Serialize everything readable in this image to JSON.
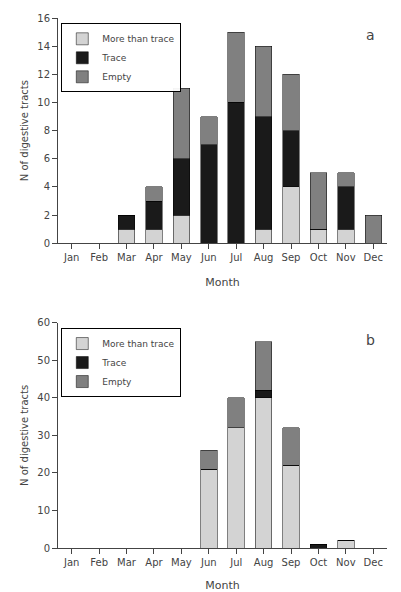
{
  "chart_data": [
    {
      "type": "bar",
      "stacked": true,
      "categories": [
        "Jan",
        "Feb",
        "Mar",
        "Apr",
        "May",
        "Jun",
        "Jul",
        "Aug",
        "Sep",
        "Oct",
        "Nov",
        "Dec"
      ],
      "series": [
        {
          "name": "More than trace",
          "color": "#d3d3d3",
          "values": [
            0,
            0,
            1,
            1,
            2,
            0,
            0,
            1,
            4,
            1,
            1,
            0
          ]
        },
        {
          "name": "Trace",
          "color": "#1a1a1a",
          "values": [
            0,
            0,
            1,
            2,
            4,
            7,
            10,
            8,
            4,
            0,
            3,
            0
          ]
        },
        {
          "name": "Empty",
          "color": "#808080",
          "values": [
            0,
            0,
            0,
            1,
            5,
            2,
            5,
            5,
            4,
            4,
            1,
            2
          ]
        }
      ],
      "ylim": [
        0,
        16
      ],
      "yticks": [
        0,
        2,
        4,
        6,
        8,
        10,
        12,
        14,
        16
      ],
      "ylabel": "N of digestive tracts",
      "xlabel": "Month",
      "annotations": [
        "a"
      ],
      "legend": "upper left",
      "grid": false
    },
    {
      "type": "bar",
      "stacked": true,
      "categories": [
        "Jan",
        "Feb",
        "Mar",
        "Apr",
        "May",
        "Jun",
        "Jul",
        "Aug",
        "Sep",
        "Oct",
        "Nov",
        "Dec"
      ],
      "series": [
        {
          "name": "More than trace",
          "color": "#d3d3d3",
          "values": [
            0,
            0,
            0,
            0,
            0,
            21,
            32,
            40,
            22,
            0,
            2,
            0
          ]
        },
        {
          "name": "Trace",
          "color": "#1a1a1a",
          "values": [
            0,
            0,
            0,
            0,
            0,
            0,
            0,
            2,
            0,
            1,
            0,
            0
          ]
        },
        {
          "name": "Empty",
          "color": "#808080",
          "values": [
            0,
            0,
            0,
            0,
            0,
            5,
            8,
            13,
            10,
            0,
            0,
            0
          ]
        }
      ],
      "ylim": [
        0,
        60
      ],
      "yticks": [
        0,
        10,
        20,
        30,
        40,
        50,
        60
      ],
      "ylabel": "N of digestive tracts",
      "xlabel": "Month",
      "annotations": [
        "b"
      ],
      "legend": "upper left",
      "grid": false
    }
  ]
}
